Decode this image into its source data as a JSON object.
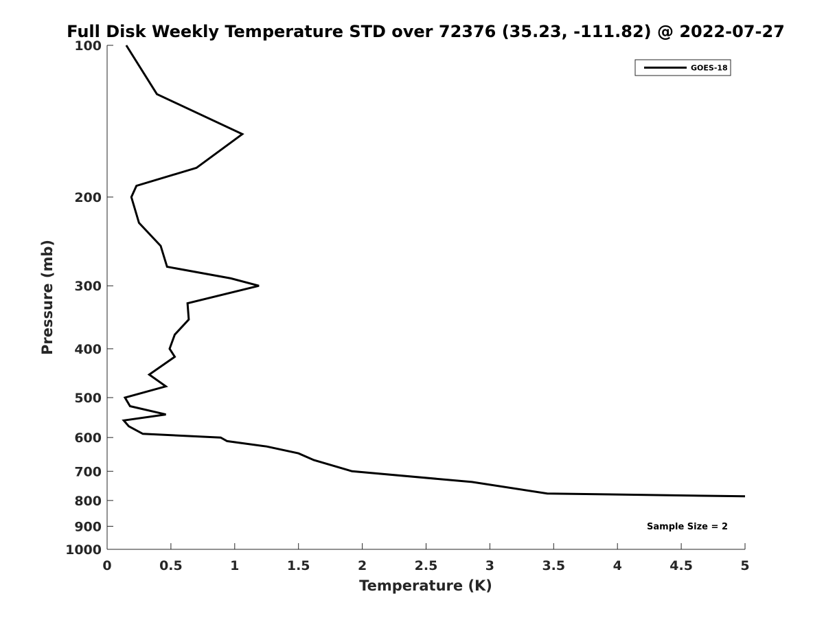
{
  "chart_data": {
    "type": "line",
    "title": "Full Disk Weekly Temperature STD over 72376 (35.23, -111.82) @ 2022-07-27",
    "xlabel": "Temperature (K)",
    "ylabel": "Pressure (mb)",
    "xlim": [
      0,
      5
    ],
    "ylim": [
      100,
      1000
    ],
    "y_scale": "log",
    "y_reversed": true,
    "x_ticks": [
      "0",
      "0.5",
      "1",
      "1.5",
      "2",
      "2.5",
      "3",
      "3.5",
      "4",
      "4.5",
      "5"
    ],
    "y_ticks": [
      "100",
      "200",
      "300",
      "400",
      "500",
      "600",
      "700",
      "800",
      "900",
      "1000"
    ],
    "grid": false,
    "legend_position": "top-right",
    "annotation": "Sample Size = 2",
    "series": [
      {
        "name": "GOES-18",
        "color": "#000000",
        "x": [
          0.15,
          0.39,
          1.06,
          0.7,
          0.23,
          0.19,
          0.25,
          0.42,
          0.47,
          0.97,
          1.19,
          0.63,
          0.64,
          0.53,
          0.49,
          0.53,
          0.33,
          0.46,
          0.14,
          0.18,
          0.46,
          0.13,
          0.17,
          0.28,
          0.89,
          0.94,
          1.25,
          1.5,
          1.62,
          1.92,
          2.86,
          3.45,
          5.0
        ],
        "y": [
          100,
          125,
          150,
          175,
          190,
          200,
          225,
          250,
          275,
          290,
          300,
          325,
          350,
          375,
          400,
          415,
          450,
          475,
          500,
          520,
          540,
          555,
          570,
          590,
          600,
          610,
          625,
          645,
          665,
          700,
          735,
          775,
          785
        ]
      }
    ]
  }
}
